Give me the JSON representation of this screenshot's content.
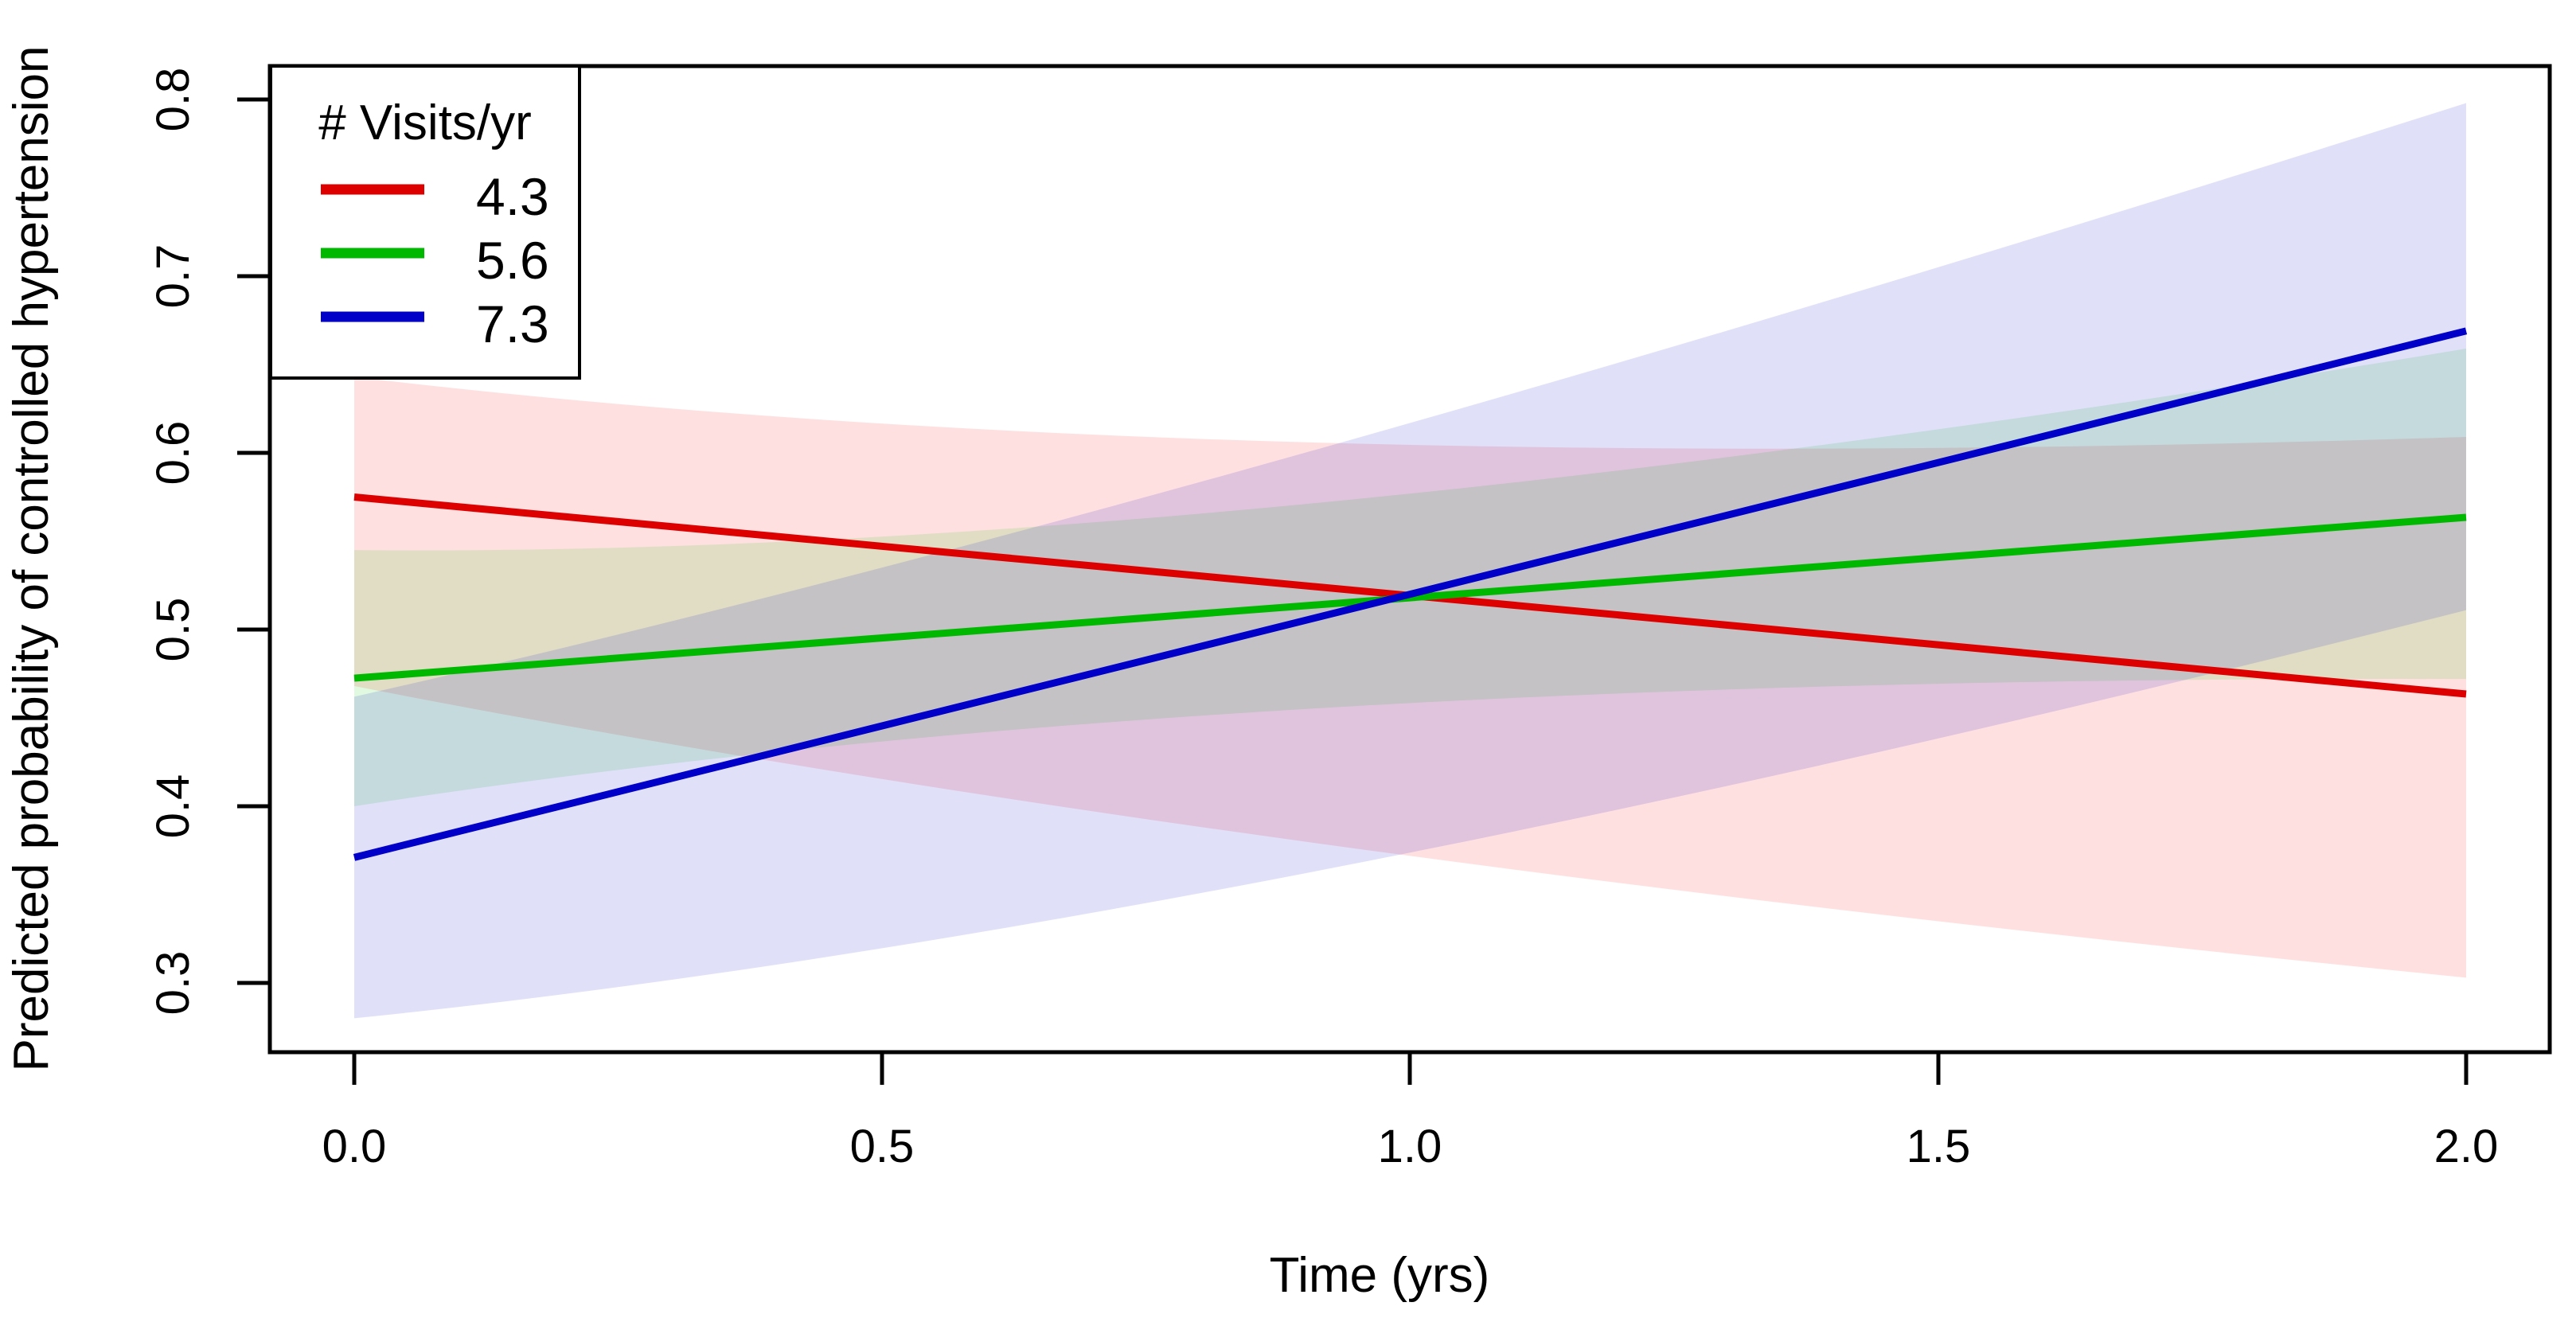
{
  "chart_data": {
    "type": "line",
    "title": "",
    "xlabel": "Time (yrs)",
    "ylabel": "Predicted probability of controlled hypertension",
    "xlim": [
      0.0,
      2.0
    ],
    "ylim": [
      0.275,
      0.8
    ],
    "grid": false,
    "x_ticks": [
      0.0,
      0.5,
      1.0,
      1.5,
      2.0
    ],
    "x_tick_labels": [
      "0.0",
      "0.5",
      "1.0",
      "1.5",
      "2.0"
    ],
    "y_ticks": [
      0.3,
      0.4,
      0.5,
      0.6,
      0.7,
      0.8
    ],
    "y_tick_labels": [
      "0.3",
      "0.4",
      "0.5",
      "0.6",
      "0.7",
      "0.8"
    ],
    "legend": {
      "title": "# Visits/yr",
      "position": "topleft",
      "labels": [
        "4.3",
        "5.6",
        "7.3"
      ]
    },
    "series": [
      {
        "name": "4.3",
        "line_color": "#dd0000",
        "band_color": "#ff0000",
        "x": [
          0.0,
          2.0
        ],
        "y": [
          0.575,
          0.4635
        ],
        "band_x": [
          0.0,
          0.9,
          2.0
        ],
        "band_upper": [
          0.643,
          0.606,
          0.609
        ],
        "band_lower": [
          0.468,
          0.38,
          0.303
        ]
      },
      {
        "name": "5.6",
        "line_color": "#00b800",
        "band_color": "#00cd00",
        "x": [
          0.0,
          2.0
        ],
        "y": [
          0.4725,
          0.5635
        ],
        "band_x": [
          0.0,
          0.9,
          2.0
        ],
        "band_upper": [
          0.545,
          0.571,
          0.659
        ],
        "band_lower": [
          0.4,
          0.455,
          0.472
        ]
      },
      {
        "name": "7.3",
        "line_color": "#0000c8",
        "band_color": "#0000cd",
        "x": [
          0.0,
          2.0
        ],
        "y": [
          0.371,
          0.669
        ],
        "band_x": [
          0.0,
          0.9,
          2.0
        ],
        "band_upper": [
          0.462,
          0.6,
          0.798
        ],
        "band_lower": [
          0.28,
          0.362,
          0.511
        ]
      }
    ],
    "band_opacity": 0.12
  }
}
